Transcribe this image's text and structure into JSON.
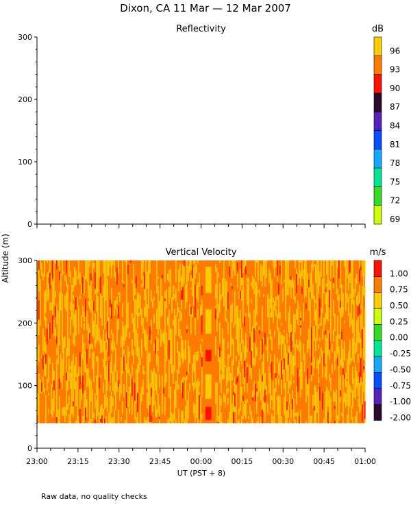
{
  "title": "Dixon, CA 11 Mar — 12 Mar 2007",
  "footer": "Raw data, no quality checks",
  "shared_ylabel": "Altitude (m)",
  "xlabel": "UT  (PST + 8)",
  "x_ticks": [
    "23:00",
    "23:15",
    "23:30",
    "23:45",
    "00:00",
    "00:15",
    "00:30",
    "00:45",
    "01:00"
  ],
  "chart_data": [
    {
      "type": "heatmap",
      "title": "Reflectivity",
      "xlabel": "UT  (PST + 8)",
      "ylabel": "Altitude (m)",
      "x_range": [
        "23:00",
        "01:00"
      ],
      "ylim": [
        0,
        300
      ],
      "y_ticks": [
        0,
        100,
        200,
        300
      ],
      "colorbar": {
        "unit": "dB",
        "levels": [
          69,
          72,
          75,
          78,
          81,
          84,
          87,
          90,
          93,
          96
        ],
        "colors": [
          "#ccff00",
          "#33dd22",
          "#00e896",
          "#11aaff",
          "#0050ff",
          "#5522bb",
          "#2d0a2d",
          "#ff1100",
          "#ff7a00",
          "#ffcc00"
        ]
      },
      "data": "empty"
    },
    {
      "type": "heatmap",
      "title": "Vertical Velocity",
      "xlabel": "UT  (PST + 8)",
      "ylabel": "Altitude (m)",
      "x_range": [
        "23:00",
        "01:00"
      ],
      "ylim": [
        0,
        300
      ],
      "y_ticks": [
        0,
        100,
        200,
        300
      ],
      "data_altitude_range": [
        40,
        300
      ],
      "colorbar": {
        "unit": "m/s",
        "levels": [
          -2.0,
          -1.0,
          -0.75,
          -0.5,
          -0.25,
          0.0,
          0.25,
          0.5,
          0.75,
          1.0
        ],
        "labels": [
          "-2.00",
          "-1.00",
          "-0.75",
          "-0.50",
          "-0.25",
          "0.00",
          "0.25",
          "0.50",
          "0.75",
          "1.00"
        ],
        "colors": [
          "#2d0a2d",
          "#5522bb",
          "#0050ff",
          "#11aaff",
          "#00e896",
          "#33dd22",
          "#ccff00",
          "#ffcc00",
          "#ff7a00",
          "#ff1100"
        ]
      },
      "dominant_values_ms": [
        0.25,
        0.75
      ],
      "gap": {
        "start": "00:01",
        "end": "00:05"
      }
    }
  ]
}
